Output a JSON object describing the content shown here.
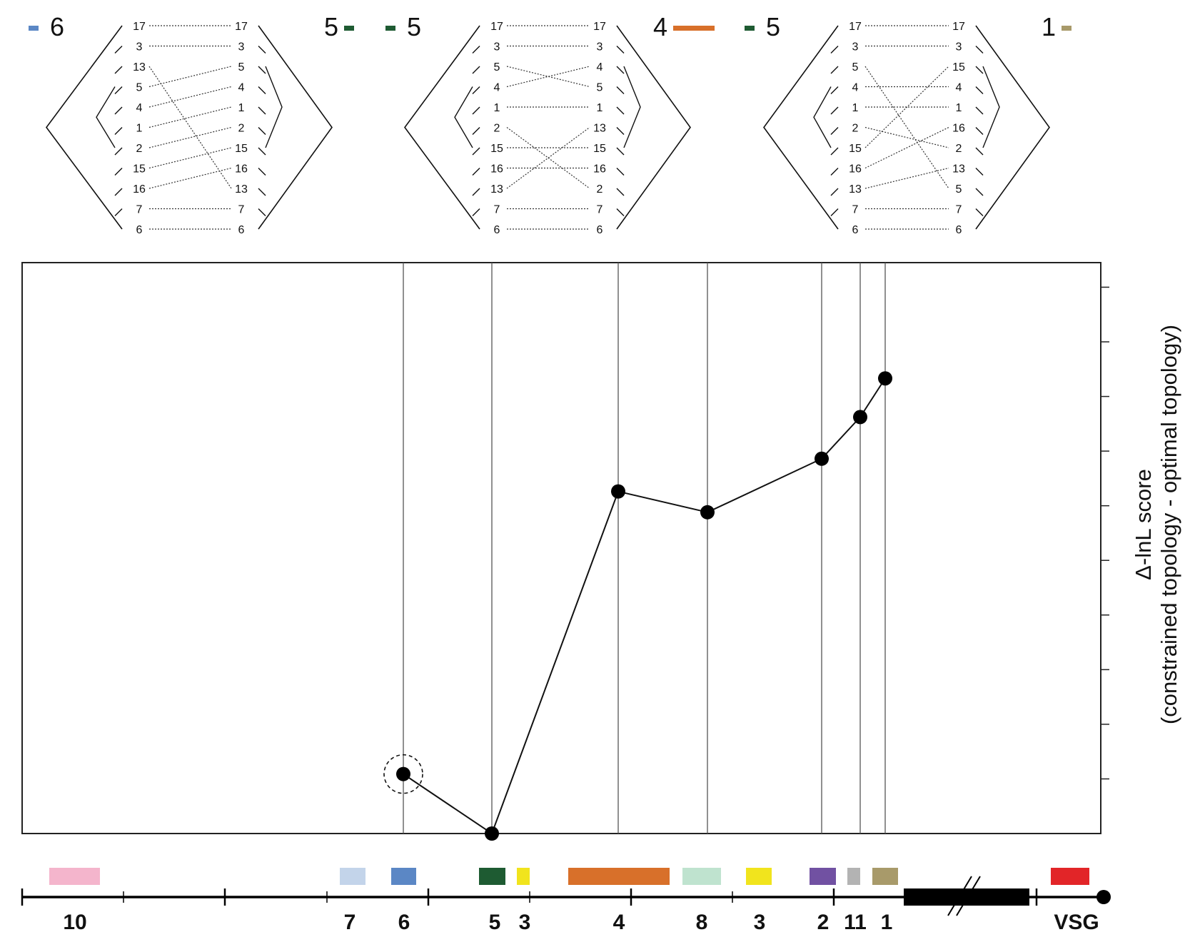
{
  "chart_data": {
    "type": "line",
    "title": "",
    "xlabel": "",
    "ylabel": "Δ-lnL score",
    "ylabel_sub": "(constrained topology - optimal topology)",
    "y_tick_count": 10,
    "y_tick_labels_shown": false,
    "grid": "vertical lines at each data point",
    "series": [
      {
        "points": [
          {
            "x": "6",
            "y": 1.0,
            "highlighted": true
          },
          {
            "x": "5",
            "y": 0.0
          },
          {
            "x": "4",
            "y": 5.75
          },
          {
            "x": "8",
            "y": 5.4
          },
          {
            "x": "2",
            "y": 6.3
          },
          {
            "x": "11",
            "y": 7.0
          },
          {
            "x": "1",
            "y": 7.65
          }
        ]
      }
    ],
    "ylim": [
      0,
      9.5
    ],
    "gene_track": [
      {
        "label": "10",
        "color": "#f4b5cc"
      },
      {
        "label": "7",
        "color": "#c3d4ea"
      },
      {
        "label": "6",
        "color": "#5b87c5"
      },
      {
        "label": "5",
        "color": "#1e5b32"
      },
      {
        "label": "3",
        "color": "#f1e41d"
      },
      {
        "label": "4",
        "color": "#d8702a"
      },
      {
        "label": "8",
        "color": "#bfe3cf"
      },
      {
        "label": "3",
        "color": "#f1e41d"
      },
      {
        "label": "2",
        "color": "#7151a2"
      },
      {
        "label": "11",
        "color": "#b3b3b3"
      },
      {
        "label": "1",
        "color": "#a89a6a"
      },
      {
        "label": "VSG",
        "color": "#e22528"
      }
    ],
    "tree_panels": [
      {
        "left_legend": {
          "label": "6",
          "color": "#5b87c5"
        },
        "right_legend": {
          "label": "5",
          "color": "#1e5b32"
        },
        "left_order": [
          "17",
          "3",
          "13",
          "5",
          "4",
          "1",
          "2",
          "15",
          "16",
          "7",
          "6"
        ],
        "right_order": [
          "17",
          "3",
          "5",
          "4",
          "1",
          "2",
          "15",
          "16",
          "13",
          "7",
          "6"
        ]
      },
      {
        "left_legend": {
          "label": "5",
          "color": "#1e5b32"
        },
        "right_legend": {
          "label": "4",
          "color": "#d8702a"
        },
        "left_order": [
          "17",
          "3",
          "5",
          "4",
          "1",
          "2",
          "15",
          "16",
          "13",
          "7",
          "6"
        ],
        "right_order": [
          "17",
          "3",
          "4",
          "5",
          "1",
          "13",
          "15",
          "16",
          "2",
          "7",
          "6"
        ]
      },
      {
        "left_legend": {
          "label": "5",
          "color": "#1e5b32"
        },
        "right_legend": {
          "label": "1",
          "color": "#a89a6a"
        },
        "left_order": [
          "17",
          "3",
          "5",
          "4",
          "1",
          "2",
          "15",
          "16",
          "13",
          "7",
          "6"
        ],
        "right_order": [
          "17",
          "3",
          "15",
          "4",
          "1",
          "16",
          "2",
          "13",
          "5",
          "7",
          "6"
        ]
      }
    ]
  }
}
